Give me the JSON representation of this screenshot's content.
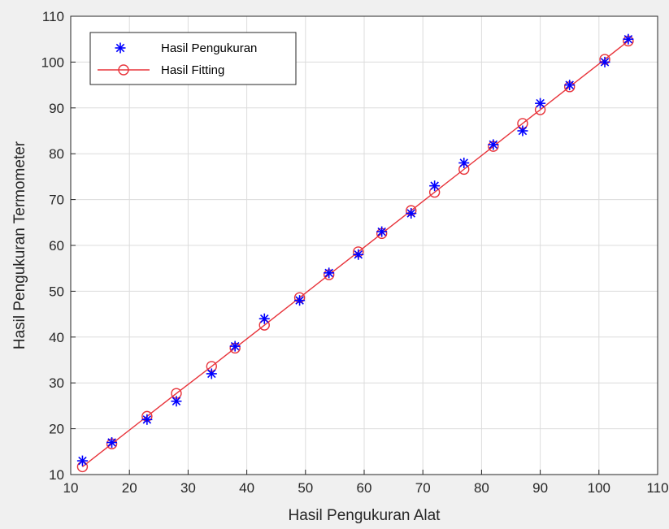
{
  "chart_data": {
    "type": "scatter",
    "title": "",
    "xlabel": "Hasil Pengukuran Alat",
    "ylabel": "Hasil Pengukuran Termometer",
    "xlim": [
      10,
      110
    ],
    "ylim": [
      10,
      110
    ],
    "xticks": [
      10,
      20,
      30,
      40,
      50,
      60,
      70,
      80,
      90,
      100,
      110
    ],
    "yticks": [
      10,
      20,
      30,
      40,
      50,
      60,
      70,
      80,
      90,
      100,
      110
    ],
    "grid": true,
    "legend_position": "top-left",
    "x": [
      12,
      17,
      23,
      28,
      34,
      38,
      43,
      49,
      54,
      59,
      63,
      68,
      72,
      77,
      82,
      87,
      90,
      95,
      101,
      105
    ],
    "series": [
      {
        "name": "Hasil Pengukuran",
        "marker": "asterisk",
        "color": "#0000ff",
        "y": [
          13,
          17,
          22,
          26,
          32,
          38,
          44,
          48,
          54,
          58,
          63,
          67,
          73,
          78,
          82,
          85,
          91,
          95,
          100,
          105
        ]
      },
      {
        "name": "Hasil Fitting",
        "marker": "circle-line",
        "color": "#e8333a",
        "y": [
          11.7,
          16.7,
          22.7,
          27.7,
          33.6,
          37.6,
          42.6,
          48.6,
          53.6,
          58.6,
          62.6,
          67.6,
          71.6,
          76.6,
          81.6,
          86.6,
          89.6,
          94.6,
          100.6,
          104.6
        ]
      }
    ]
  }
}
